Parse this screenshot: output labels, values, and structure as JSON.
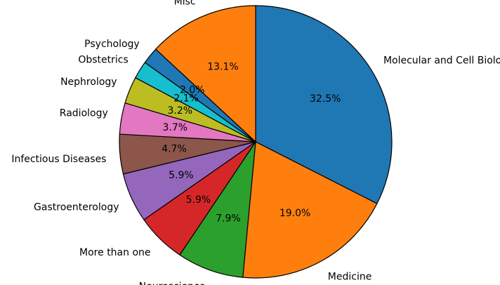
{
  "chart_data": {
    "type": "pie",
    "title": "",
    "start_angle_deg": 90,
    "direction": "clockwise",
    "slices": [
      {
        "label": "Molecular and Cell Biology",
        "value": 32.5,
        "pct_label": "32.5%",
        "color": "#1f77b4"
      },
      {
        "label": "Medicine",
        "value": 19.0,
        "pct_label": "19.0%",
        "color": "#ff7f0e"
      },
      {
        "label": "Neuroscience",
        "value": 7.9,
        "pct_label": "7.9%",
        "color": "#2ca02c"
      },
      {
        "label": "More than one",
        "value": 5.9,
        "pct_label": "5.9%",
        "color": "#d62728"
      },
      {
        "label": "Gastroenterology",
        "value": 5.9,
        "pct_label": "5.9%",
        "color": "#9467bd"
      },
      {
        "label": "Infectious Diseases",
        "value": 4.7,
        "pct_label": "4.7%",
        "color": "#8c564b"
      },
      {
        "label": "Radiology",
        "value": 3.7,
        "pct_label": "3.7%",
        "color": "#e377c2"
      },
      {
        "label": "Nephrology",
        "value": 3.2,
        "pct_label": "3.2%",
        "color": "#bcbd22"
      },
      {
        "label": "Obstetrics",
        "value": 2.1,
        "pct_label": "2.1%",
        "color": "#17becf"
      },
      {
        "label": "Psychology",
        "value": 2.0,
        "pct_label": "2.0%",
        "color": "#1f77b4"
      },
      {
        "label": "Misc",
        "value": 13.1,
        "pct_label": "13.1%",
        "color": "#ff7f0e"
      }
    ]
  }
}
